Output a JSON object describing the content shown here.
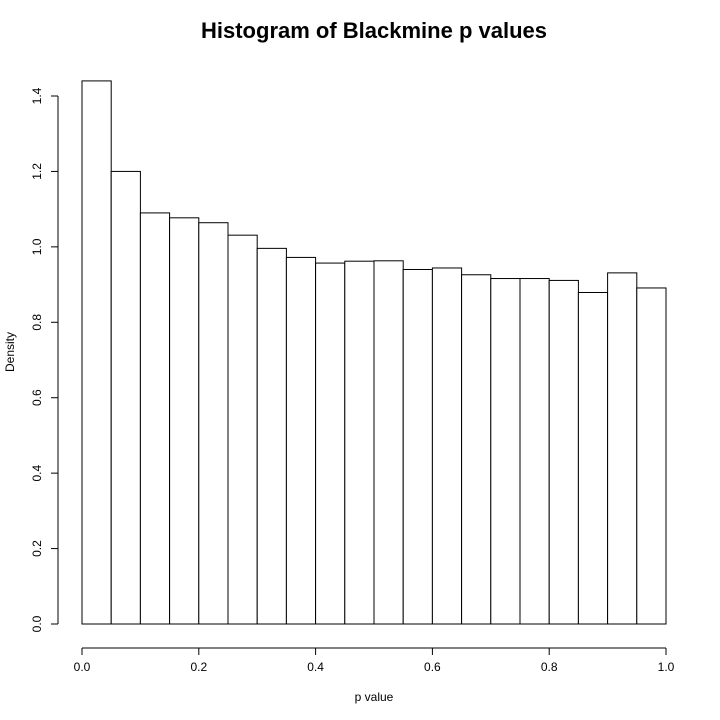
{
  "chart_data": {
    "type": "bar",
    "title": "Histogram of Blackmine p values",
    "xlabel": "p value",
    "ylabel": "Density",
    "xlim": [
      0,
      1
    ],
    "ylim": [
      0,
      1.4
    ],
    "x_ticks": [
      "0.0",
      "0.2",
      "0.4",
      "0.6",
      "0.8",
      "1.0"
    ],
    "y_ticks": [
      "0.0",
      "0.2",
      "0.4",
      "0.6",
      "0.8",
      "1.0",
      "1.2",
      "1.4"
    ],
    "bin_edges": [
      0.0,
      0.05,
      0.1,
      0.15,
      0.2,
      0.25,
      0.3,
      0.35,
      0.4,
      0.45,
      0.5,
      0.55,
      0.6,
      0.65,
      0.7,
      0.75,
      0.8,
      0.85,
      0.9,
      0.95,
      1.0
    ],
    "values": [
      1.44,
      1.2,
      1.09,
      1.077,
      1.064,
      1.031,
      0.996,
      0.972,
      0.957,
      0.962,
      0.963,
      0.94,
      0.944,
      0.926,
      0.916,
      0.916,
      0.911,
      0.879,
      0.931,
      0.891
    ],
    "grid": false,
    "legend": "none"
  }
}
